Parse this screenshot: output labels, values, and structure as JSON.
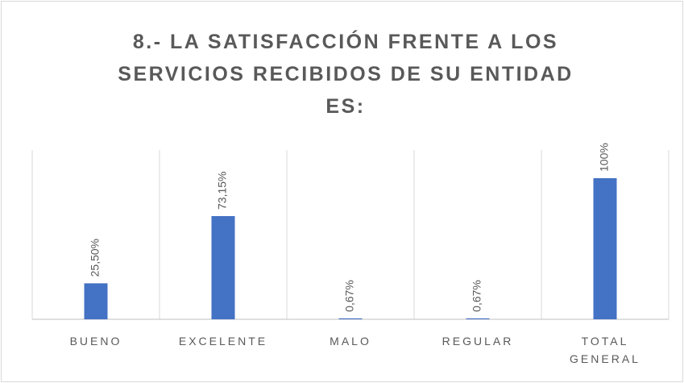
{
  "chart_data": {
    "type": "bar",
    "title": "8.- LA SATISFACCIÓN FRENTE A LOS SERVICIOS RECIBIDOS DE SU ENTIDAD ES:",
    "categories": [
      "BUENO",
      "EXCELENTE",
      "MALO",
      "REGULAR",
      "TOTAL GENERAL"
    ],
    "values": [
      25.5,
      73.15,
      0.67,
      0.67,
      100
    ],
    "value_labels": [
      "25,50%",
      "73,15%",
      "0,67%",
      "0,67%",
      "100%"
    ],
    "color": "#4472c4",
    "ylim": [
      0,
      120
    ]
  }
}
